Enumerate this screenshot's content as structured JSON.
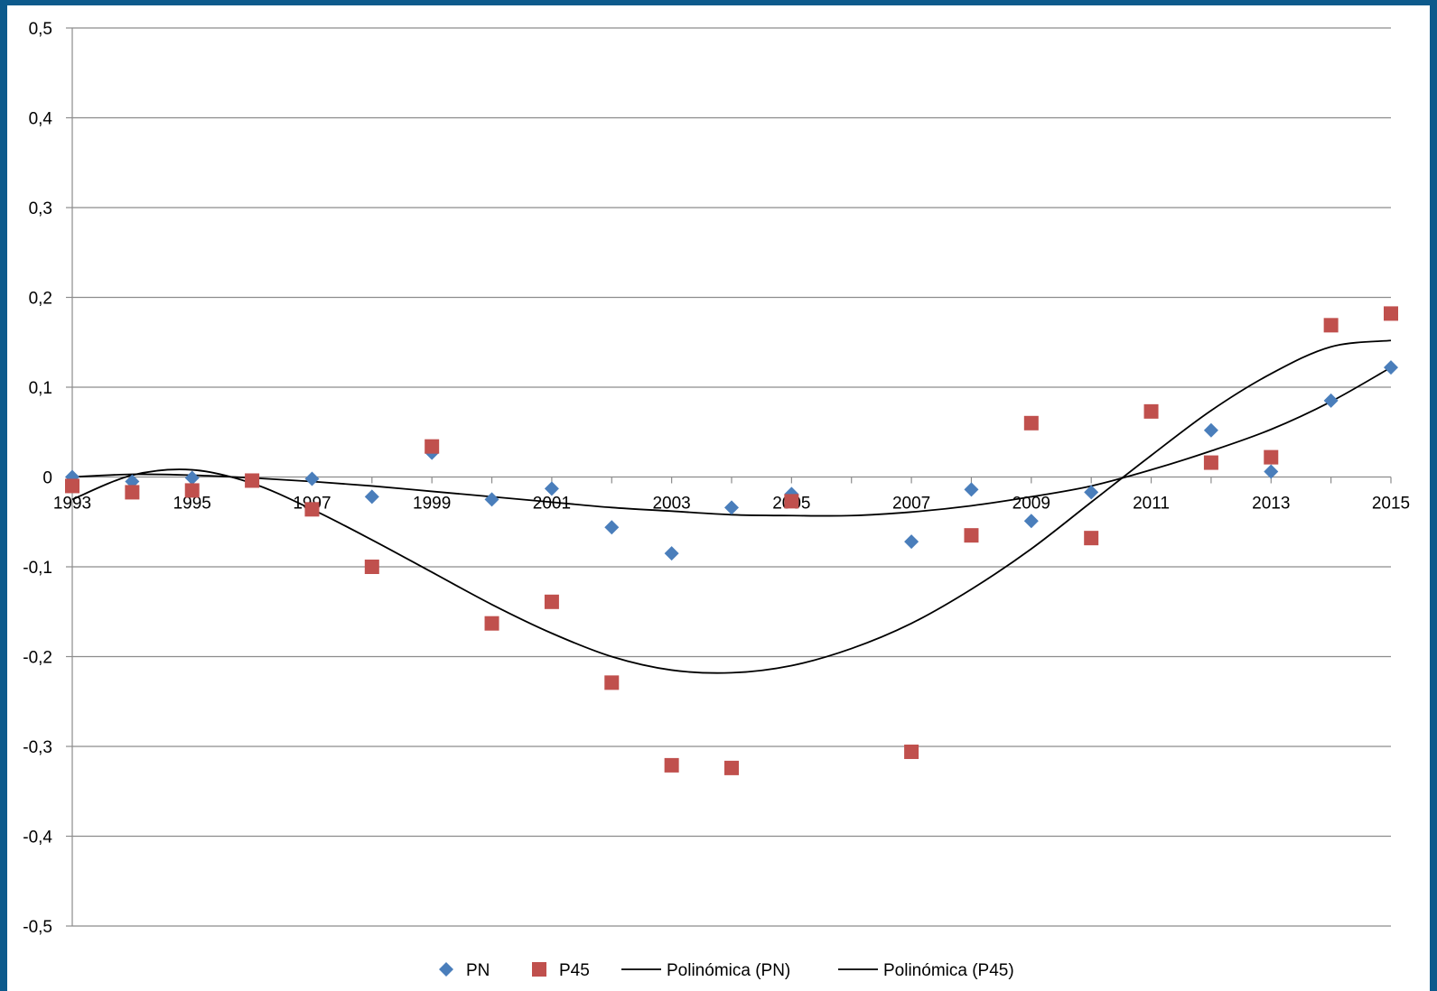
{
  "chart_data": {
    "type": "scatter",
    "x_ticks": [
      "1993",
      "1995",
      "1997",
      "1999",
      "2001",
      "2003",
      "2005",
      "2007",
      "2009",
      "2011",
      "2013",
      "2015"
    ],
    "y_ticks": [
      "0,5",
      "0,4",
      "0,3",
      "0,2",
      "0,1",
      "0",
      "-0,1",
      "-0,2",
      "-0,3",
      "-0,4",
      "-0,5"
    ],
    "y_tick_values": [
      0.5,
      0.4,
      0.3,
      0.2,
      0.1,
      0,
      -0.1,
      -0.2,
      -0.3,
      -0.4,
      -0.5
    ],
    "xlim": [
      1993,
      2015
    ],
    "ylim": [
      -0.5,
      0.5
    ],
    "grid": "horizontal",
    "legend_position": "bottom",
    "series": [
      {
        "name": "PN",
        "marker": "diamond",
        "color": "#4a7ebb",
        "x": [
          1993,
          1994,
          1995,
          1996,
          1997,
          1998,
          1999,
          2000,
          2001,
          2002,
          2003,
          2004,
          2005,
          2007,
          2008,
          2009,
          2010,
          2012,
          2013,
          2014,
          2015
        ],
        "y": [
          0.0,
          -0.005,
          -0.001,
          -0.004,
          -0.002,
          -0.022,
          0.027,
          -0.025,
          -0.013,
          -0.056,
          -0.085,
          -0.034,
          -0.019,
          -0.072,
          -0.014,
          -0.049,
          -0.017,
          0.052,
          0.006,
          0.085,
          0.122
        ]
      },
      {
        "name": "P45",
        "marker": "square",
        "color": "#c0504d",
        "x": [
          1993,
          1994,
          1995,
          1996,
          1997,
          1998,
          1999,
          2000,
          2001,
          2002,
          2003,
          2004,
          2005,
          2007,
          2008,
          2009,
          2010,
          2011,
          2012,
          2013,
          2014,
          2015
        ],
        "y": [
          -0.01,
          -0.017,
          -0.015,
          -0.004,
          -0.036,
          -0.1,
          0.034,
          -0.163,
          -0.139,
          -0.229,
          -0.321,
          -0.324,
          -0.027,
          -0.306,
          -0.065,
          0.06,
          -0.068,
          0.073,
          0.016,
          0.022,
          0.169,
          0.182
        ]
      },
      {
        "name": "Polinómica (PN)",
        "type": "line",
        "color": "#000000",
        "x": [
          1993,
          1994,
          1995,
          1996,
          1997,
          1998,
          1999,
          2000,
          2001,
          2002,
          2003,
          2004,
          2005,
          2006,
          2007,
          2008,
          2009,
          2010,
          2011,
          2012,
          2013,
          2014,
          2015
        ],
        "y": [
          0.0,
          0.003,
          0.002,
          -0.001,
          -0.005,
          -0.01,
          -0.016,
          -0.022,
          -0.028,
          -0.034,
          -0.038,
          -0.042,
          -0.043,
          -0.043,
          -0.039,
          -0.032,
          -0.022,
          -0.01,
          0.008,
          0.029,
          0.053,
          0.084,
          0.122
        ]
      },
      {
        "name": "Polinómica (P45)",
        "type": "line",
        "color": "#000000",
        "x": [
          1993,
          1994,
          1995,
          1996,
          1997,
          1998,
          1999,
          2000,
          2001,
          2002,
          2003,
          2004,
          2005,
          2006,
          2007,
          2008,
          2009,
          2010,
          2011,
          2012,
          2013,
          2014,
          2015
        ],
        "y": [
          -0.025,
          0.002,
          0.008,
          -0.007,
          -0.036,
          -0.07,
          -0.106,
          -0.142,
          -0.174,
          -0.2,
          -0.215,
          -0.218,
          -0.21,
          -0.191,
          -0.163,
          -0.125,
          -0.08,
          -0.028,
          0.024,
          0.074,
          0.115,
          0.145,
          0.152
        ]
      }
    ]
  },
  "legend": {
    "items": [
      {
        "label": "PN",
        "kind": "diamond",
        "color": "#4a7ebb"
      },
      {
        "label": "P45",
        "kind": "square",
        "color": "#c0504d"
      },
      {
        "label": "Polinómica (PN)",
        "kind": "line",
        "color": "#000000"
      },
      {
        "label": "Polinómica (P45)",
        "kind": "line",
        "color": "#000000"
      }
    ]
  },
  "colors": {
    "frame": "#0d5a8c",
    "grid": "#8c8c8c",
    "axis": "#8c8c8c"
  }
}
